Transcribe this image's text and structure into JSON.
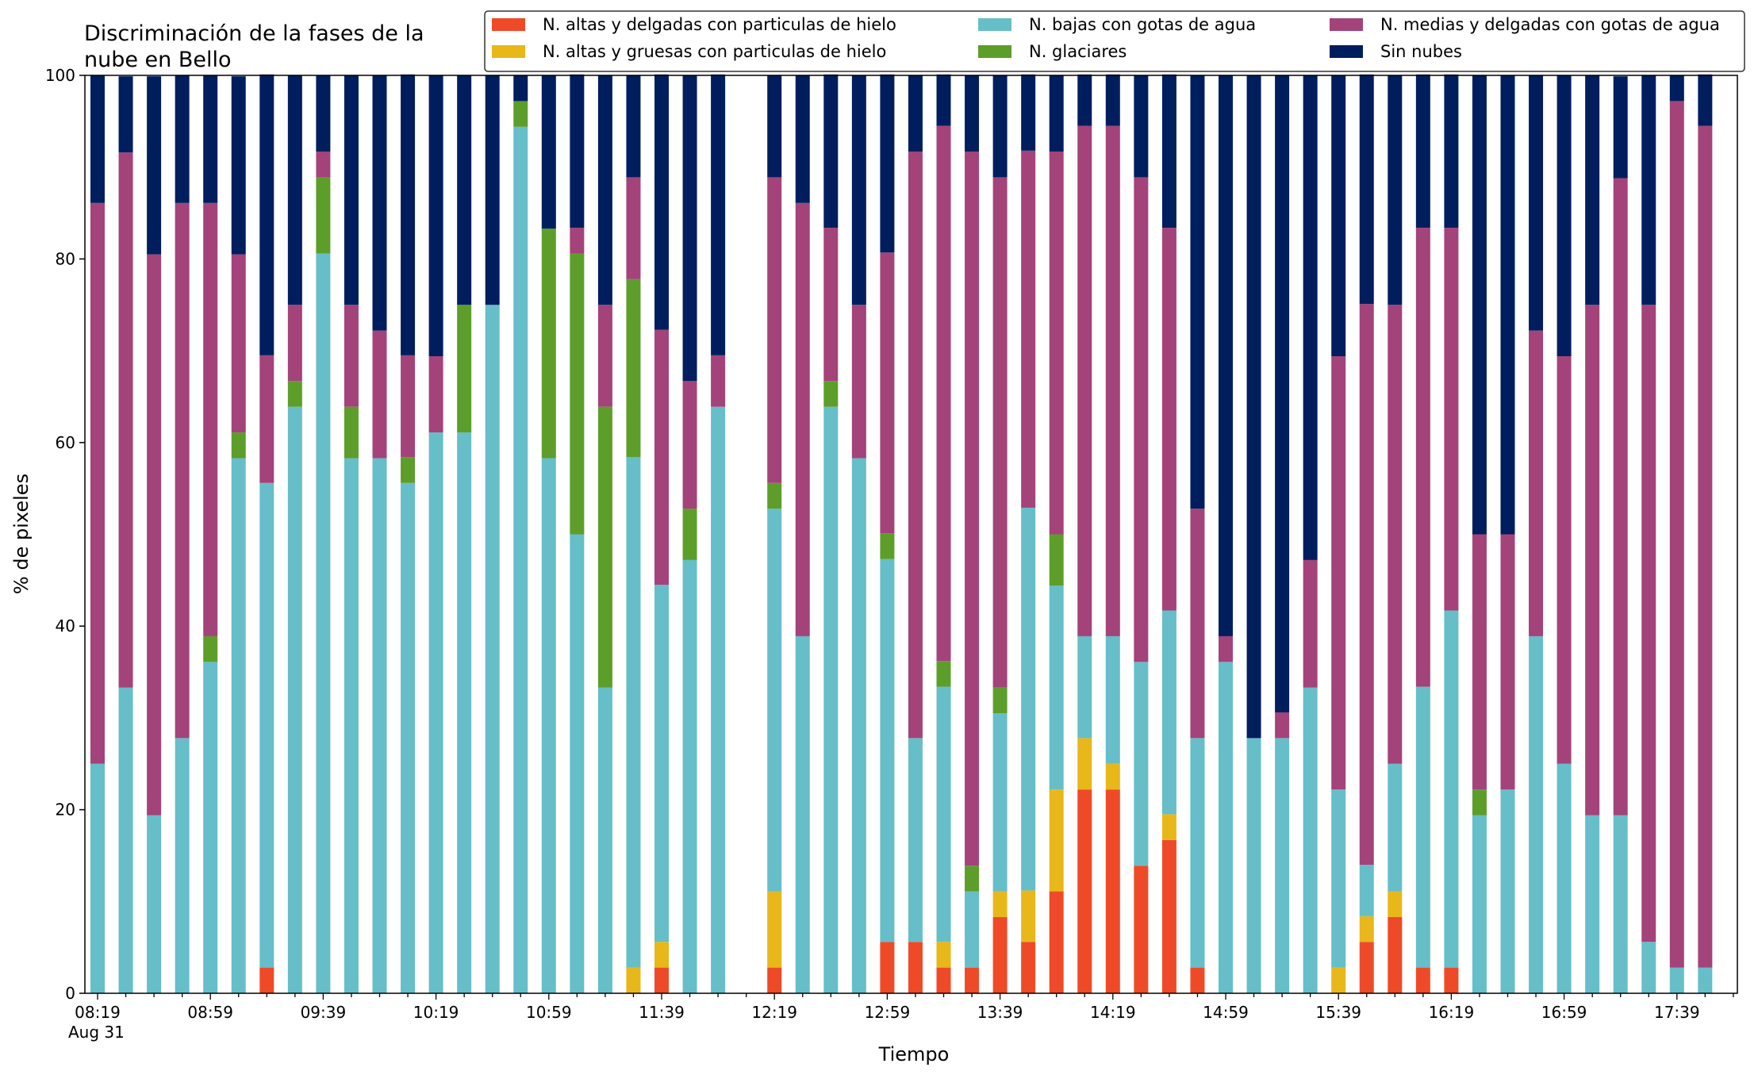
{
  "chart_data": {
    "type": "bar",
    "stacked": true,
    "title": "Discriminación de la fases de la nube en Bello",
    "title_lines": [
      "Discriminación de la fases de la",
      "nube en Bello"
    ],
    "xlabel": "Tiempo",
    "ylabel": "% de pixeles",
    "ylim": [
      0,
      100
    ],
    "yticks": [
      0,
      20,
      40,
      60,
      80,
      100
    ],
    "xticks": [
      "08:19",
      "08:59",
      "09:39",
      "10:19",
      "10:59",
      "11:39",
      "12:19",
      "12:59",
      "13:39",
      "14:19",
      "14:59",
      "15:39",
      "16:19",
      "16:59",
      "17:39"
    ],
    "x_sublabel": "Aug 31",
    "grid": false,
    "legend_position": "top-right",
    "x": [
      "08:19",
      "08:29",
      "08:39",
      "08:49",
      "08:59",
      "09:09",
      "09:19",
      "09:29",
      "09:39",
      "09:49",
      "09:59",
      "10:09",
      "10:19",
      "10:29",
      "10:39",
      "10:49",
      "10:59",
      "11:09",
      "11:19",
      "11:29",
      "11:39",
      "11:49",
      "11:59",
      "12:09",
      "12:19",
      "12:29",
      "12:39",
      "12:49",
      "12:59",
      "13:09",
      "13:19",
      "13:29",
      "13:39",
      "13:49",
      "13:59",
      "14:09",
      "14:19",
      "14:29",
      "14:39",
      "14:49",
      "14:59",
      "15:09",
      "15:19",
      "15:29",
      "15:39",
      "15:49",
      "15:59",
      "16:09",
      "16:19",
      "16:29",
      "16:39",
      "16:49",
      "16:59",
      "17:09",
      "17:19",
      "17:29",
      "17:39",
      "17:49"
    ],
    "series": [
      {
        "name": "N. altas y delgadas con particulas de hielo",
        "color": "#EF4A28",
        "values": [
          0,
          0,
          0,
          0,
          0,
          0,
          2.8,
          0,
          0,
          0,
          0,
          0,
          0,
          0,
          0,
          0,
          0,
          0,
          0,
          0,
          2.8,
          0,
          0,
          0,
          2.8,
          0,
          0,
          0,
          5.6,
          5.6,
          2.8,
          2.8,
          8.3,
          5.6,
          11.1,
          22.2,
          22.2,
          13.9,
          16.7,
          2.8,
          0,
          0,
          0,
          0,
          0,
          5.6,
          8.3,
          2.8,
          2.8,
          0,
          0,
          0,
          0,
          0,
          0,
          0,
          0,
          0
        ]
      },
      {
        "name": "N. altas y gruesas con particulas de hielo",
        "color": "#E8B71A",
        "values": [
          0,
          0,
          0,
          0,
          0,
          0,
          0,
          0,
          0,
          0,
          0,
          0,
          0,
          0,
          0,
          0,
          0,
          0,
          0,
          2.8,
          2.8,
          0,
          0,
          0,
          8.3,
          0,
          0,
          0,
          0,
          0,
          2.8,
          0,
          2.8,
          5.6,
          11.1,
          5.6,
          2.8,
          0,
          2.8,
          0,
          0,
          0,
          0,
          0,
          2.8,
          2.8,
          2.8,
          0,
          0,
          0,
          0,
          0,
          0,
          0,
          0,
          0,
          0,
          0
        ]
      },
      {
        "name": "N. bajas con gotas de agua",
        "color": "#66BEC9",
        "values": [
          25,
          33.3,
          19.4,
          27.8,
          36.1,
          58.3,
          52.8,
          63.9,
          80.6,
          58.3,
          58.3,
          55.6,
          61.1,
          61.1,
          75,
          94.4,
          58.3,
          50,
          33.3,
          55.6,
          38.9,
          47.2,
          63.9,
          0,
          41.7,
          38.9,
          63.9,
          58.3,
          41.7,
          22.2,
          27.8,
          8.3,
          19.4,
          41.7,
          22.2,
          11.1,
          13.9,
          22.2,
          22.2,
          25,
          36.1,
          27.8,
          27.8,
          33.3,
          19.4,
          5.6,
          13.9,
          30.6,
          38.9,
          19.4,
          22.2,
          38.9,
          25,
          19.4,
          19.4,
          5.6,
          2.8,
          2.8
        ]
      },
      {
        "name": "N. glaciares",
        "color": "#5D9E2A",
        "values": [
          0,
          0,
          0,
          0,
          2.8,
          2.8,
          0,
          2.8,
          8.3,
          5.6,
          0,
          2.8,
          0,
          13.9,
          0,
          2.8,
          25,
          30.6,
          30.6,
          19.4,
          0,
          5.6,
          0,
          0,
          2.8,
          0,
          2.8,
          0,
          2.8,
          0,
          2.8,
          2.8,
          2.8,
          0,
          5.6,
          0,
          0,
          0,
          0,
          0,
          0,
          0,
          0,
          0,
          0,
          0,
          0,
          0,
          0,
          2.8,
          0,
          0,
          0,
          0,
          0,
          0,
          0,
          0
        ]
      },
      {
        "name": "N. medias y delgadas con gotas de agua",
        "color": "#A3437A",
        "values": [
          61.1,
          58.3,
          61.1,
          58.3,
          47.2,
          19.4,
          13.9,
          8.3,
          2.8,
          11.1,
          13.9,
          11.1,
          8.3,
          0,
          0,
          0,
          0,
          2.8,
          11.1,
          11.1,
          27.8,
          13.9,
          5.6,
          0,
          33.3,
          47.2,
          16.7,
          16.7,
          30.6,
          63.9,
          58.3,
          77.8,
          55.6,
          38.9,
          41.7,
          55.6,
          55.6,
          52.8,
          41.7,
          25,
          2.8,
          0,
          2.8,
          13.9,
          47.2,
          61.1,
          50,
          50,
          41.7,
          27.8,
          27.8,
          33.3,
          44.4,
          55.6,
          69.4,
          69.4,
          94.4,
          91.7
        ]
      },
      {
        "name": "Sin nubes",
        "color": "#001E5E",
        "values": [
          13.9,
          8.3,
          19.4,
          13.9,
          13.9,
          19.4,
          30.6,
          25,
          8.3,
          25,
          27.8,
          30.6,
          30.6,
          25,
          25,
          2.8,
          16.7,
          16.7,
          25,
          11.1,
          27.8,
          33.3,
          30.6,
          0,
          11.1,
          13.9,
          16.7,
          25,
          19.4,
          8.3,
          5.6,
          8.3,
          11.1,
          8.3,
          8.3,
          5.6,
          5.6,
          11.1,
          16.7,
          47.2,
          61.1,
          72.2,
          69.4,
          52.8,
          30.6,
          25,
          25,
          16.7,
          16.7,
          50,
          50,
          27.8,
          30.6,
          25,
          11.1,
          25,
          2.8,
          5.6
        ]
      }
    ]
  }
}
